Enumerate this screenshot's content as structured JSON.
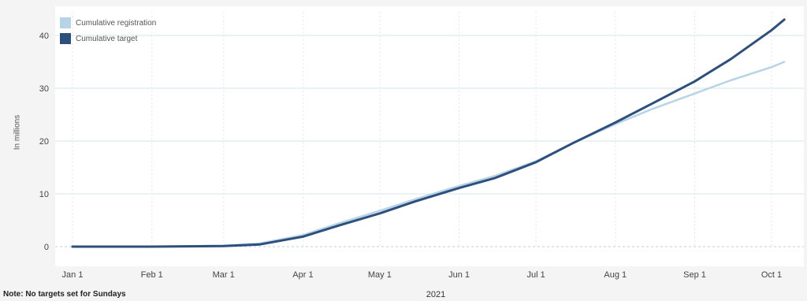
{
  "chart_data": {
    "type": "line",
    "xlabel": "2021",
    "ylabel": "In millions",
    "note": "Note: No targets set for Sundays",
    "ylim": [
      0,
      40
    ],
    "yticks": [
      0,
      10,
      20,
      30,
      40
    ],
    "xlim": [
      "2021-01-01",
      "2021-10-08"
    ],
    "xticks": [
      {
        "date": "2021-01-01",
        "label": "Jan 1"
      },
      {
        "date": "2021-02-01",
        "label": "Feb 1"
      },
      {
        "date": "2021-03-01",
        "label": "Mar 1"
      },
      {
        "date": "2021-04-01",
        "label": "Apr 1"
      },
      {
        "date": "2021-05-01",
        "label": "May 1"
      },
      {
        "date": "2021-06-01",
        "label": "Jun 1"
      },
      {
        "date": "2021-07-01",
        "label": "Jul 1"
      },
      {
        "date": "2021-08-01",
        "label": "Aug 1"
      },
      {
        "date": "2021-09-01",
        "label": "Sep 1"
      },
      {
        "date": "2021-10-01",
        "label": "Oct 1"
      }
    ],
    "grid": true,
    "legend_position": "top-left",
    "series": [
      {
        "name": "Cumulative registration",
        "color": "#b7d4e6",
        "points": [
          [
            "2021-01-01",
            0
          ],
          [
            "2021-02-01",
            0
          ],
          [
            "2021-03-01",
            0.2
          ],
          [
            "2021-03-15",
            0.6
          ],
          [
            "2021-04-01",
            2.2
          ],
          [
            "2021-04-15",
            4.4
          ],
          [
            "2021-05-01",
            6.8
          ],
          [
            "2021-05-15",
            9.0
          ],
          [
            "2021-06-01",
            11.5
          ],
          [
            "2021-06-15",
            13.4
          ],
          [
            "2021-07-01",
            16.2
          ],
          [
            "2021-07-15",
            19.5
          ],
          [
            "2021-08-01",
            23.2
          ],
          [
            "2021-08-15",
            26.0
          ],
          [
            "2021-09-01",
            29.0
          ],
          [
            "2021-09-15",
            31.5
          ],
          [
            "2021-10-01",
            34.0
          ],
          [
            "2021-10-06",
            35.0
          ]
        ]
      },
      {
        "name": "Cumulative target",
        "color": "#2c4f7c",
        "points": [
          [
            "2021-01-01",
            0
          ],
          [
            "2021-02-01",
            0
          ],
          [
            "2021-03-01",
            0.1
          ],
          [
            "2021-03-15",
            0.4
          ],
          [
            "2021-04-01",
            1.9
          ],
          [
            "2021-04-15",
            4.0
          ],
          [
            "2021-05-01",
            6.3
          ],
          [
            "2021-05-15",
            8.6
          ],
          [
            "2021-06-01",
            11.1
          ],
          [
            "2021-06-15",
            13.0
          ],
          [
            "2021-07-01",
            16.0
          ],
          [
            "2021-07-15",
            19.5
          ],
          [
            "2021-08-01",
            23.5
          ],
          [
            "2021-08-15",
            27.0
          ],
          [
            "2021-09-01",
            31.3
          ],
          [
            "2021-09-15",
            35.5
          ],
          [
            "2021-10-01",
            41.0
          ],
          [
            "2021-10-06",
            43.0
          ]
        ]
      }
    ]
  }
}
